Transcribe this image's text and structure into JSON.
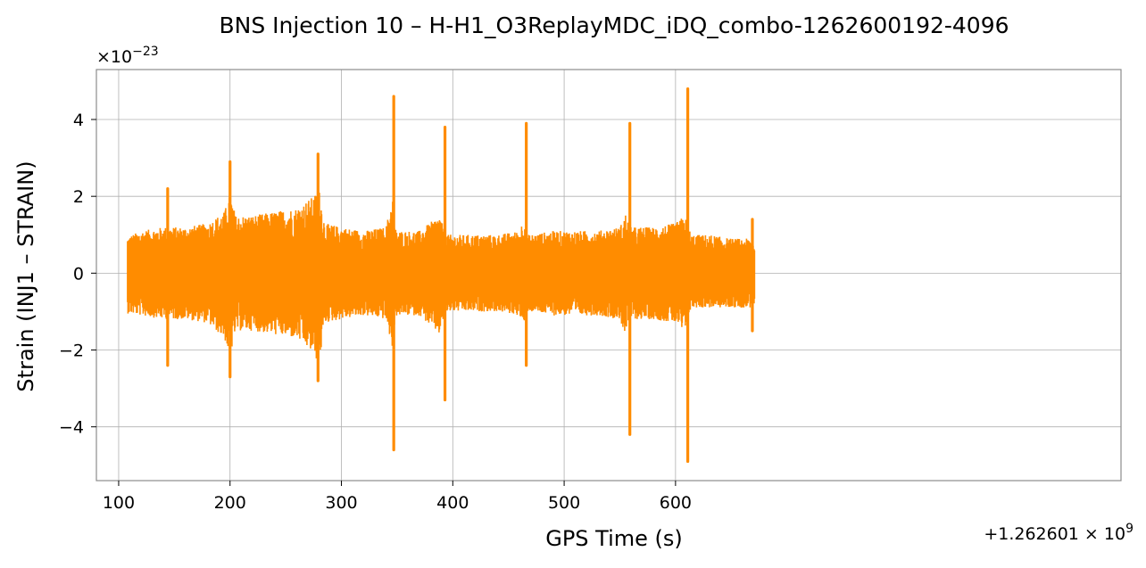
{
  "chart_data": {
    "type": "line",
    "title": "BNS Injection 10 – H-H1_O3ReplayMDC_iDQ_combo-1262600192-4096",
    "xlabel": "GPS Time (s)",
    "ylabel": "Strain (INJ1 – STRAIN)",
    "y_scale_prefix": "×10",
    "y_scale_exponent": "−23",
    "x_offset_prefix": "+1.262601 × 10",
    "x_offset_exponent": "9",
    "xlim": [
      80,
      1000
    ],
    "ylim": [
      -5.4,
      5.3
    ],
    "x_ticks": [
      100,
      200,
      300,
      400,
      500,
      600
    ],
    "x_tick_labels": [
      "100",
      "200",
      "300",
      "400",
      "500",
      "600"
    ],
    "y_ticks": [
      -4,
      -2,
      0,
      2,
      4
    ],
    "y_tick_labels": [
      "−4",
      "−2",
      "0",
      "2",
      "4"
    ],
    "grid": true,
    "line_color": "#ff8c00",
    "series": [
      {
        "x_range": [
          108,
          671
        ],
        "envelope": {
          "x": [
            108,
            120,
            140,
            160,
            180,
            195,
            200,
            205,
            220,
            240,
            260,
            275,
            280,
            285,
            300,
            320,
            340,
            346,
            348,
            350,
            370,
            388,
            393,
            396,
            420,
            440,
            460,
            464,
            466,
            468,
            490,
            510,
            530,
            550,
            556,
            558,
            560,
            580,
            600,
            608,
            611,
            614,
            630,
            650,
            668,
            671
          ],
          "upper": [
            0.95,
            1.1,
            1.2,
            1.2,
            1.3,
            1.6,
            2.1,
            1.5,
            1.5,
            1.6,
            1.7,
            2.0,
            2.2,
            1.3,
            1.2,
            1.1,
            1.2,
            2.0,
            1.2,
            1.1,
            1.1,
            1.5,
            1.1,
            1.0,
            1.0,
            1.0,
            1.1,
            1.5,
            1.0,
            1.0,
            1.1,
            1.1,
            1.1,
            1.2,
            1.6,
            1.2,
            1.2,
            1.2,
            1.3,
            1.5,
            1.3,
            1.0,
            1.0,
            0.9,
            0.9,
            0.8
          ],
          "lower": [
            -1.05,
            -1.1,
            -1.2,
            -1.2,
            -1.3,
            -1.7,
            -2.2,
            -1.5,
            -1.5,
            -1.6,
            -1.7,
            -2.1,
            -2.4,
            -1.3,
            -1.2,
            -1.1,
            -1.2,
            -2.0,
            -1.2,
            -1.1,
            -1.1,
            -1.6,
            -1.1,
            -1.0,
            -1.0,
            -1.0,
            -1.1,
            -1.5,
            -1.0,
            -1.0,
            -1.1,
            -1.1,
            -1.1,
            -1.2,
            -1.7,
            -1.2,
            -1.2,
            -1.2,
            -1.3,
            -1.6,
            -1.4,
            -0.9,
            -0.9,
            -0.9,
            -0.9,
            -0.8
          ]
        },
        "spikes": [
          {
            "x": 144,
            "high": 2.2,
            "low": -2.4
          },
          {
            "x": 200,
            "high": 2.9,
            "low": -2.7
          },
          {
            "x": 279,
            "high": 3.1,
            "low": -2.8
          },
          {
            "x": 347,
            "high": 4.6,
            "low": -4.6
          },
          {
            "x": 393,
            "high": 3.8,
            "low": -3.3
          },
          {
            "x": 466,
            "high": 3.9,
            "low": -2.4
          },
          {
            "x": 559,
            "high": 3.9,
            "low": -4.2
          },
          {
            "x": 611,
            "high": 4.8,
            "low": -4.9
          },
          {
            "x": 669,
            "high": 1.4,
            "low": -1.5
          }
        ]
      }
    ]
  }
}
